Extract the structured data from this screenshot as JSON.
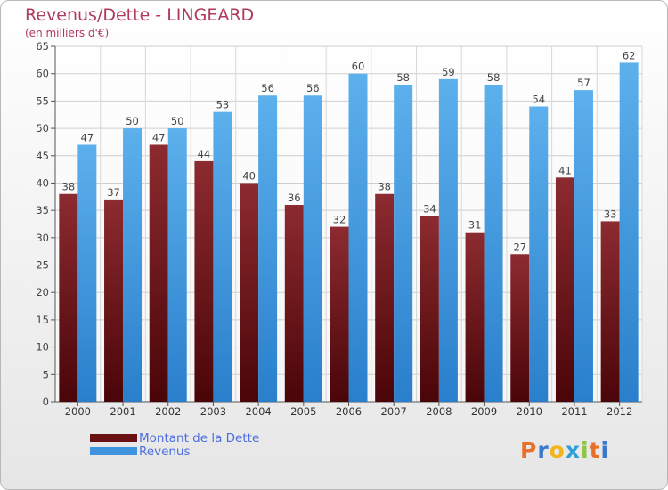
{
  "header": {
    "title": "Revenus/Dette - LINGEARD",
    "subtitle": "(en milliers d'€)"
  },
  "chart_data": {
    "type": "bar",
    "categories": [
      "2000",
      "2001",
      "2002",
      "2003",
      "2004",
      "2005",
      "2006",
      "2007",
      "2008",
      "2009",
      "2010",
      "2011",
      "2012"
    ],
    "series": [
      {
        "name": "Montant de la Dette",
        "color": "#7a1e22",
        "values": [
          38,
          37,
          47,
          44,
          40,
          36,
          32,
          38,
          34,
          31,
          27,
          41,
          33
        ]
      },
      {
        "name": "Revenus",
        "color": "#4da3e6",
        "values": [
          47,
          50,
          50,
          53,
          56,
          56,
          60,
          58,
          59,
          58,
          54,
          57,
          62
        ]
      }
    ],
    "title": "Revenus/Dette - LINGEARD",
    "subtitle": "(en milliers d'€)",
    "ylim": [
      0,
      65
    ],
    "yticks": [
      0,
      5,
      10,
      15,
      20,
      25,
      30,
      35,
      40,
      45,
      50,
      55,
      60,
      65
    ],
    "grid": true,
    "legend_position": "bottom-left"
  },
  "legend": {
    "items": [
      {
        "label": "Montant de la Dette",
        "color": "#6a0f12"
      },
      {
        "label": "Revenus",
        "color": "#3f93df"
      }
    ]
  },
  "logo": {
    "letters": [
      "P",
      "r",
      "o",
      "x",
      "i",
      "t",
      "i"
    ],
    "colors": [
      "#e8702a",
      "#3a78c9",
      "#f2b61c",
      "#2f9fd8",
      "#8cc63f",
      "#e8702a",
      "#3a78c9"
    ]
  }
}
